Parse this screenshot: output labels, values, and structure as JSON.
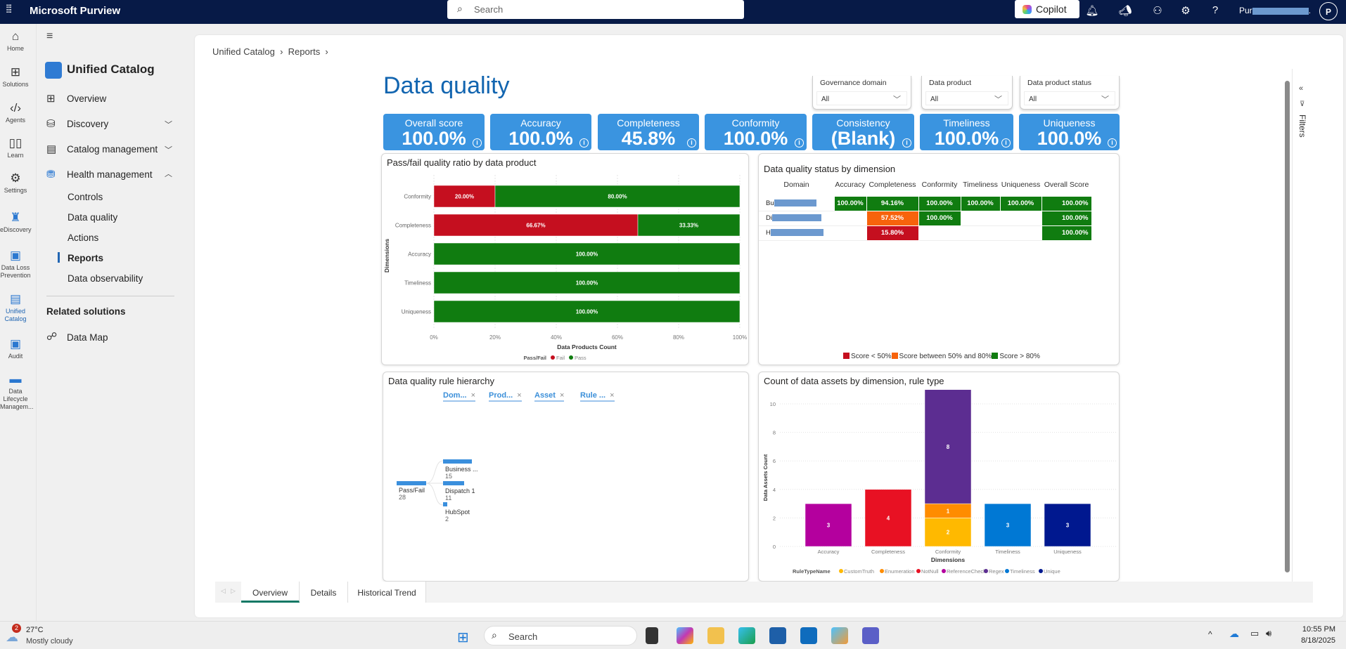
{
  "topbar": {
    "app_title": "Microsoft Purview",
    "search_placeholder": "Search",
    "copilot_label": "Copilot",
    "user_name_prefix": "Pur",
    "user_name_suffix": ".",
    "avatar_initial": "P"
  },
  "rail": [
    {
      "label": "Home",
      "icon": "⌂"
    },
    {
      "label": "Solutions",
      "icon": "⊞"
    },
    {
      "label": "Agents",
      "icon": "‹/›"
    },
    {
      "label": "Learn",
      "icon": "▯▯"
    },
    {
      "label": "Settings",
      "icon": "⚙"
    },
    {
      "label": "eDiscovery",
      "icon": "♜"
    },
    {
      "label": "Data Loss Prevention",
      "icon": "▣"
    },
    {
      "label": "Unified Catalog",
      "icon": "▤"
    },
    {
      "label": "Audit",
      "icon": "▣"
    },
    {
      "label": "Data Lifecycle Managem...",
      "icon": "▬"
    }
  ],
  "nav": {
    "section_title": "Unified Catalog",
    "items": [
      {
        "label": "Overview"
      },
      {
        "label": "Discovery"
      },
      {
        "label": "Catalog management"
      },
      {
        "label": "Health management"
      }
    ],
    "sub_items": [
      "Controls",
      "Data quality",
      "Actions",
      "Reports",
      "Data observability"
    ],
    "related_title": "Related solutions",
    "related": [
      "Data Map"
    ]
  },
  "breadcrumb": [
    "Unified Catalog",
    "Reports"
  ],
  "report": {
    "title": "Data quality",
    "filters": [
      {
        "label": "Governance domain",
        "value": "All"
      },
      {
        "label": "Data product",
        "value": "All"
      },
      {
        "label": "Data product status",
        "value": "All"
      }
    ],
    "kpis": [
      {
        "label": "Overall score",
        "value": "100.0%"
      },
      {
        "label": "Accuracy",
        "value": "100.0%"
      },
      {
        "label": "Completeness",
        "value": "45.8%"
      },
      {
        "label": "Conformity",
        "value": "100.0%"
      },
      {
        "label": "Consistency",
        "value": "(Blank)"
      },
      {
        "label": "Timeliness",
        "value": "100.0%"
      },
      {
        "label": "Uniqueness",
        "value": "100.0%"
      }
    ],
    "status_table": {
      "title": "Data quality status by dimension",
      "columns": [
        "Domain",
        "Accuracy",
        "Completeness",
        "Conformity",
        "Timeliness",
        "Uniqueness",
        "Overall Score"
      ],
      "rows": [
        {
          "domain": "Bu",
          "cells": [
            "100.00%",
            "94.16%",
            "100.00%",
            "100.00%",
            "100.00%",
            "100.00%"
          ],
          "colors": [
            "#107c10",
            "#107c10",
            "#107c10",
            "#107c10",
            "#107c10",
            "#107c10"
          ]
        },
        {
          "domain": "Di",
          "cells": [
            "",
            "57.52%",
            "100.00%",
            "",
            "",
            "100.00%"
          ],
          "colors": [
            "",
            "#f7630c",
            "#107c10",
            "",
            "",
            "#107c10"
          ]
        },
        {
          "domain": "H",
          "cells": [
            "",
            "15.80%",
            "",
            "",
            "",
            "100.00%"
          ],
          "colors": [
            "",
            "#c50f1f",
            "",
            "",
            "",
            "#107c10"
          ]
        }
      ],
      "legend": [
        "Score < 50%",
        "Score between 50% and 80%",
        "Score > 80%"
      ],
      "legend_colors": [
        "#c50f1f",
        "#f7630c",
        "#107c10"
      ]
    },
    "hierarchy": {
      "title": "Data quality rule hierarchy",
      "levels": [
        "Dom...",
        "Prod...",
        "Asset",
        "Rule ..."
      ],
      "root": {
        "label": "Pass/Fail",
        "value": "28"
      },
      "children": [
        {
          "label": "Business ...",
          "value": "15"
        },
        {
          "label": "Dispatch 1",
          "value": "11"
        },
        {
          "label": "HubSpot",
          "value": "2"
        }
      ]
    },
    "tabs": [
      "Overview",
      "Details",
      "Historical Trend"
    ],
    "filters_pane_label": "Filters"
  },
  "chart_data": [
    {
      "type": "bar",
      "orientation": "horizontal",
      "stacked": "100%",
      "title": "Pass/fail quality ratio by data product",
      "xlabel": "Data Products Count",
      "ylabel": "Dimensions",
      "categories": [
        "Conformity",
        "Completeness",
        "Accuracy",
        "Timeliness",
        "Uniqueness"
      ],
      "series": [
        {
          "name": "Fail",
          "color": "#c50f1f",
          "values": [
            20.0,
            66.67,
            0,
            0,
            0
          ]
        },
        {
          "name": "Pass",
          "color": "#107c10",
          "values": [
            80.0,
            33.33,
            100.0,
            100.0,
            100.0
          ]
        }
      ],
      "xticks": [
        "0%",
        "20%",
        "40%",
        "60%",
        "80%",
        "100%"
      ],
      "legend_title": "Pass/Fail",
      "legend": "bottom"
    },
    {
      "type": "bar",
      "stacked": true,
      "title": "Count of data assets by dimension, rule type",
      "xlabel": "Dimensions",
      "ylabel": "Data Assets Count",
      "categories": [
        "Accuracy",
        "Completeness",
        "Conformity",
        "Timeliness",
        "Uniqueness"
      ],
      "ylim": [
        0,
        11
      ],
      "yticks": [
        0,
        2,
        4,
        6,
        8,
        10
      ],
      "series": [
        {
          "name": "CustomTruth",
          "color": "#ffb900",
          "values": [
            0,
            0,
            2,
            0,
            0
          ]
        },
        {
          "name": "Enumeration",
          "color": "#ff8c00",
          "values": [
            0,
            0,
            1,
            0,
            0
          ]
        },
        {
          "name": "NotNull",
          "color": "#e81123",
          "values": [
            0,
            4,
            0,
            0,
            0
          ]
        },
        {
          "name": "ReferenceCheck",
          "color": "#b4009e",
          "values": [
            3,
            0,
            0,
            0,
            0
          ]
        },
        {
          "name": "Regex",
          "color": "#5c2d91",
          "values": [
            0,
            0,
            8,
            0,
            0
          ]
        },
        {
          "name": "Timeliness",
          "color": "#0078d4",
          "values": [
            0,
            0,
            0,
            3,
            0
          ]
        },
        {
          "name": "Unique",
          "color": "#00188f",
          "values": [
            0,
            0,
            0,
            0,
            3
          ]
        }
      ],
      "legend_title": "RuleTypeName",
      "legend": "bottom"
    }
  ],
  "taskbar": {
    "weather_temp": "27°C",
    "weather_desc": "Mostly cloudy",
    "weather_badge": "2",
    "search_placeholder": "Search",
    "time": "10:55 PM",
    "date": "8/18/2025"
  }
}
